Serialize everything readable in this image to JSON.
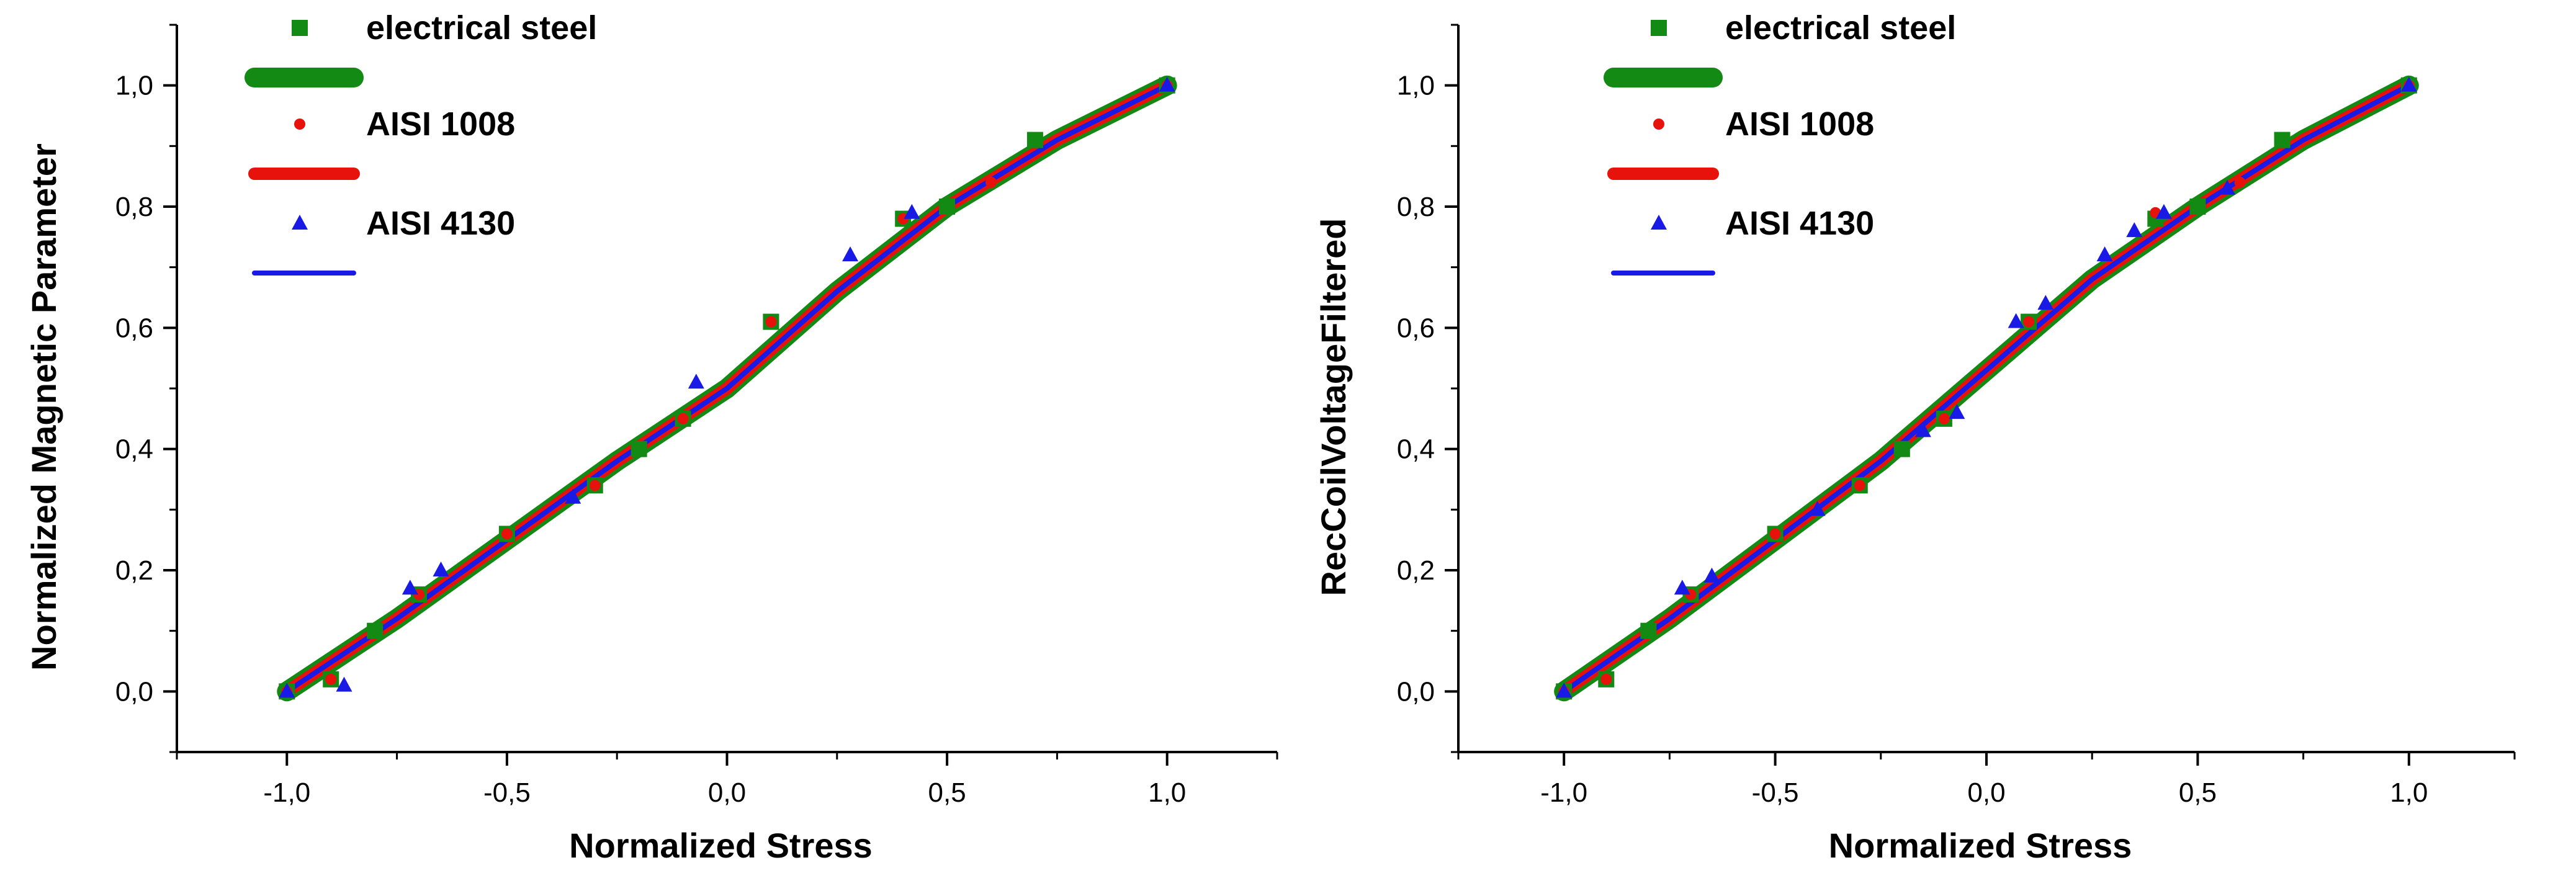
{
  "chart_data": [
    {
      "type": "line",
      "title": "",
      "xlabel": "Normalized Stress",
      "ylabel": "Normalized Magnetic Parameter",
      "xlim": [
        -1.25,
        1.25
      ],
      "ylim": [
        -0.1,
        1.1
      ],
      "xticks": [
        -1.0,
        -0.5,
        0.0,
        0.5,
        1.0
      ],
      "xtick_labels": [
        "-1,0",
        "-0,5",
        "0,0",
        "0,5",
        "1,0"
      ],
      "yticks": [
        0.0,
        0.2,
        0.4,
        0.6,
        0.8,
        1.0
      ],
      "ytick_labels": [
        "0,0",
        "0,2",
        "0,4",
        "0,6",
        "0,8",
        "1,0"
      ],
      "legend": "top-left",
      "series": [
        {
          "name": "electrical steel",
          "kind": "scatter",
          "marker": "square",
          "color": "#138a13",
          "x": [
            -1.0,
            -0.9,
            -0.8,
            -0.7,
            -0.5,
            -0.3,
            -0.2,
            -0.1,
            0.1,
            0.4,
            0.5,
            0.7,
            1.0
          ],
          "y": [
            0.0,
            0.02,
            0.1,
            0.16,
            0.26,
            0.34,
            0.4,
            0.45,
            0.61,
            0.78,
            0.8,
            0.91,
            1.0
          ]
        },
        {
          "name": "electrical steel fit",
          "kind": "line",
          "color": "#138a13",
          "width": "thick",
          "x": [
            -1.0,
            -0.75,
            -0.5,
            -0.25,
            0.0,
            0.25,
            0.5,
            0.75,
            1.0
          ],
          "y": [
            0.0,
            0.12,
            0.25,
            0.38,
            0.5,
            0.66,
            0.8,
            0.91,
            1.0
          ]
        },
        {
          "name": "AISI 1008",
          "kind": "scatter",
          "marker": "circle",
          "color": "#e8120c",
          "x": [
            -1.0,
            -0.9,
            -0.7,
            -0.5,
            -0.3,
            -0.1,
            0.1,
            0.4,
            0.6,
            1.0
          ],
          "y": [
            0.0,
            0.02,
            0.16,
            0.26,
            0.34,
            0.45,
            0.61,
            0.78,
            0.84,
            1.0
          ]
        },
        {
          "name": "AISI 1008 fit",
          "kind": "line",
          "color": "#e8120c",
          "width": "medium",
          "x": [
            -1.0,
            -0.75,
            -0.5,
            -0.25,
            0.0,
            0.25,
            0.5,
            0.75,
            1.0
          ],
          "y": [
            0.0,
            0.12,
            0.25,
            0.38,
            0.5,
            0.66,
            0.8,
            0.91,
            1.0
          ]
        },
        {
          "name": "AISI 4130",
          "kind": "scatter",
          "marker": "triangle",
          "color": "#1a1ae6",
          "x": [
            -1.0,
            -0.87,
            -0.72,
            -0.65,
            -0.35,
            -0.07,
            0.28,
            0.42,
            1.0
          ],
          "y": [
            0.0,
            0.01,
            0.17,
            0.2,
            0.32,
            0.51,
            0.72,
            0.79,
            1.0
          ]
        },
        {
          "name": "AISI 4130 fit",
          "kind": "line",
          "color": "#1a1ae6",
          "width": "thin",
          "x": [
            -1.0,
            -0.75,
            -0.5,
            -0.25,
            0.0,
            0.25,
            0.5,
            0.75,
            1.0
          ],
          "y": [
            0.0,
            0.12,
            0.25,
            0.38,
            0.5,
            0.66,
            0.8,
            0.91,
            1.0
          ]
        }
      ],
      "legend_entries": [
        "electrical steel",
        "AISI 1008",
        "AISI 4130"
      ]
    },
    {
      "type": "line",
      "title": "",
      "xlabel": "Normalized Stress",
      "ylabel": "RecCoilVoltageFiltered",
      "xlim": [
        -1.25,
        1.25
      ],
      "ylim": [
        -0.1,
        1.1
      ],
      "xticks": [
        -1.0,
        -0.5,
        0.0,
        0.5,
        1.0
      ],
      "xtick_labels": [
        "-1,0",
        "-0,5",
        "0,0",
        "0,5",
        "1,0"
      ],
      "yticks": [
        0.0,
        0.2,
        0.4,
        0.6,
        0.8,
        1.0
      ],
      "ytick_labels": [
        "0,0",
        "0,2",
        "0,4",
        "0,6",
        "0,8",
        "1,0"
      ],
      "legend": "top-left",
      "series": [
        {
          "name": "electrical steel",
          "kind": "scatter",
          "marker": "square",
          "color": "#138a13",
          "x": [
            -1.0,
            -0.9,
            -0.8,
            -0.7,
            -0.5,
            -0.3,
            -0.2,
            -0.1,
            0.1,
            0.4,
            0.5,
            0.7,
            1.0
          ],
          "y": [
            0.0,
            0.02,
            0.1,
            0.16,
            0.26,
            0.34,
            0.4,
            0.45,
            0.61,
            0.78,
            0.8,
            0.91,
            1.0
          ]
        },
        {
          "name": "electrical steel fit",
          "kind": "line",
          "color": "#138a13",
          "width": "thick",
          "x": [
            -1.0,
            -0.75,
            -0.5,
            -0.25,
            0.0,
            0.25,
            0.5,
            0.75,
            1.0
          ],
          "y": [
            0.0,
            0.12,
            0.25,
            0.38,
            0.53,
            0.68,
            0.8,
            0.91,
            1.0
          ]
        },
        {
          "name": "AISI 1008",
          "kind": "scatter",
          "marker": "circle",
          "color": "#e8120c",
          "x": [
            -1.0,
            -0.9,
            -0.7,
            -0.5,
            -0.3,
            -0.1,
            0.1,
            0.4,
            0.6,
            1.0
          ],
          "y": [
            0.0,
            0.02,
            0.16,
            0.26,
            0.34,
            0.45,
            0.61,
            0.79,
            0.84,
            1.0
          ]
        },
        {
          "name": "AISI 1008 fit",
          "kind": "line",
          "color": "#e8120c",
          "width": "medium",
          "x": [
            -1.0,
            -0.75,
            -0.5,
            -0.25,
            0.0,
            0.25,
            0.5,
            0.75,
            1.0
          ],
          "y": [
            0.0,
            0.12,
            0.25,
            0.38,
            0.53,
            0.68,
            0.8,
            0.91,
            1.0
          ]
        },
        {
          "name": "AISI 4130",
          "kind": "scatter",
          "marker": "triangle",
          "color": "#1a1ae6",
          "x": [
            -1.0,
            -0.72,
            -0.65,
            -0.4,
            -0.15,
            -0.07,
            0.07,
            0.14,
            0.28,
            0.35,
            0.42,
            0.57,
            1.0
          ],
          "y": [
            0.0,
            0.17,
            0.19,
            0.3,
            0.43,
            0.46,
            0.61,
            0.64,
            0.72,
            0.76,
            0.79,
            0.83,
            1.0
          ]
        },
        {
          "name": "AISI 4130 fit",
          "kind": "line",
          "color": "#1a1ae6",
          "width": "thin",
          "x": [
            -1.0,
            -0.75,
            -0.5,
            -0.25,
            0.0,
            0.25,
            0.5,
            0.75,
            1.0
          ],
          "y": [
            0.0,
            0.12,
            0.25,
            0.38,
            0.53,
            0.68,
            0.8,
            0.91,
            1.0
          ]
        }
      ],
      "legend_entries": [
        "electrical steel",
        "AISI 1008",
        "AISI 4130"
      ]
    }
  ]
}
